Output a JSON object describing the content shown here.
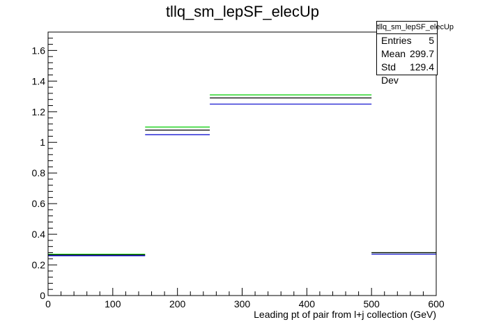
{
  "chart_data": {
    "type": "histogram",
    "title": "tllq_sm_lepSF_elecUp",
    "xlabel": "Leading pt of pair from l+j collection (GeV)",
    "ylabel": "",
    "xlim": [
      0,
      600
    ],
    "ylim": [
      0,
      1.72
    ],
    "x_ticks": [
      0,
      100,
      200,
      300,
      400,
      500,
      600
    ],
    "y_ticks": [
      0,
      0.2,
      0.4,
      0.6,
      0.8,
      1,
      1.2,
      1.4,
      1.6
    ],
    "x_tick_labels": [
      "0",
      "100",
      "200",
      "300",
      "400",
      "500",
      "600"
    ],
    "y_tick_labels": [
      "0",
      "0.2",
      "0.4",
      "0.6",
      "0.8",
      "1",
      "1.2",
      "1.4",
      "1.6"
    ],
    "bins": [
      [
        0,
        150
      ],
      [
        150,
        250
      ],
      [
        250,
        500
      ],
      [
        500,
        600
      ]
    ],
    "series": [
      {
        "color": "#00cc00",
        "values": [
          0.27,
          1.1,
          1.31,
          0.28
        ]
      },
      {
        "color": "#000000",
        "values": [
          0.265,
          1.08,
          1.29,
          0.28
        ]
      },
      {
        "color": "#0000cc",
        "values": [
          0.26,
          1.05,
          1.25,
          0.27
        ]
      }
    ],
    "grid": false,
    "legend": "none"
  },
  "stats": {
    "title": "tllq_sm_lepSF_elecUp",
    "rows": [
      {
        "label": "Entries",
        "value": "5"
      },
      {
        "label": "Mean",
        "value": "299.7"
      },
      {
        "label": "Std Dev",
        "value": "129.4"
      }
    ]
  }
}
